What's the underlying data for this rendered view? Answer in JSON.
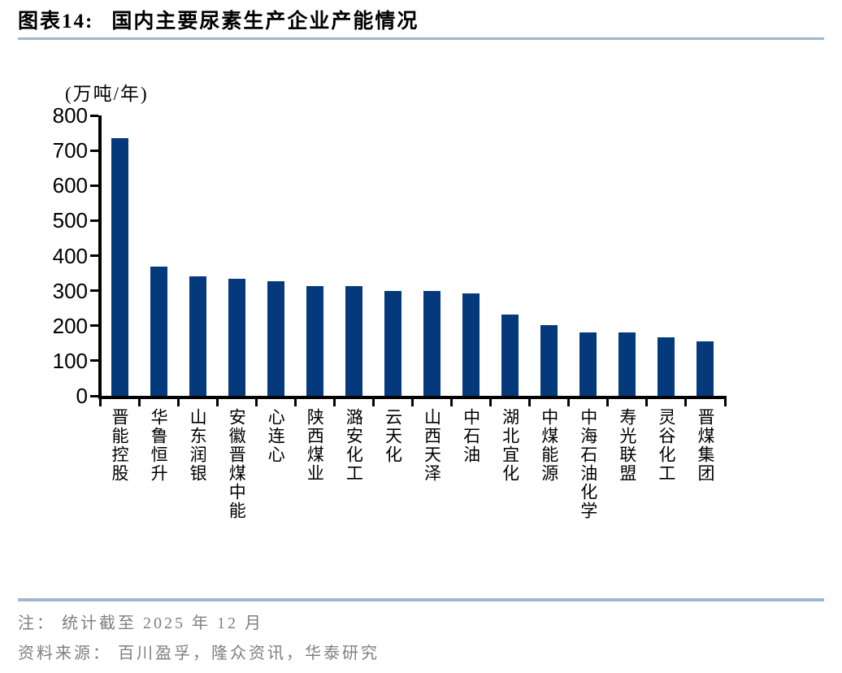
{
  "header": {
    "title_prefix": "图表14:",
    "title": "国内主要尿素生产企业产能情况"
  },
  "chart_data": {
    "type": "bar",
    "title": "国内主要尿素生产企业产能情况",
    "unit_label": "(万吨/年)",
    "xlabel": "",
    "ylabel": "万吨/年",
    "categories": [
      "晋能控股",
      "华鲁恒升",
      "山东润银",
      "安徽晋煤中能",
      "心连心",
      "陕西煤业",
      "潞安化工",
      "云天化",
      "山西天泽",
      "中石油",
      "湖北宜化",
      "中煤能源",
      "中海石油化学",
      "寿光联盟",
      "灵谷化工",
      "晋煤集团"
    ],
    "values": [
      735,
      369,
      342,
      333,
      326,
      314,
      314,
      300,
      300,
      292,
      231,
      202,
      181,
      181,
      168,
      155
    ],
    "ylim": [
      0,
      800
    ],
    "yticks": [
      0,
      100,
      200,
      300,
      400,
      500,
      600,
      700,
      800
    ],
    "grid": false,
    "legend_position": "none"
  },
  "footer": {
    "note": "注： 统计截至 2025 年 12 月",
    "source": "资料来源： 百川盈孚，隆众资讯，华泰研究"
  },
  "colors": {
    "bar": "#04397B",
    "divider": "#9EB6CE",
    "axis": "#000000",
    "note_text": "#7F7F7F",
    "title_text": "#000000"
  }
}
